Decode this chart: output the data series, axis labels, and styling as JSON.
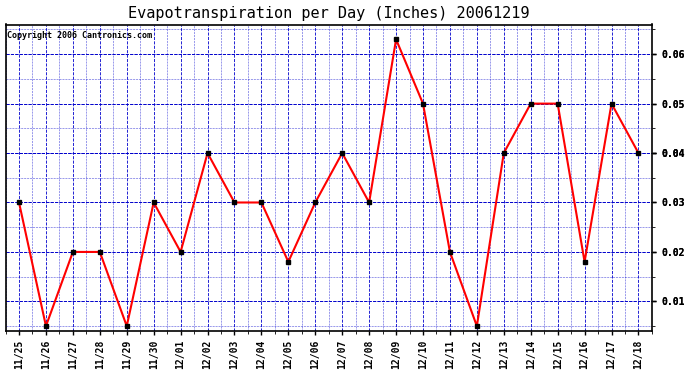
{
  "title": "Evapotranspiration per Day (Inches) 20061219",
  "copyright_text": "Copyright 2006 Cantronics.com",
  "labels": [
    "11/25",
    "11/26",
    "11/27",
    "11/28",
    "11/29",
    "11/30",
    "12/01",
    "12/02",
    "12/03",
    "12/04",
    "12/05",
    "12/06",
    "12/07",
    "12/08",
    "12/09",
    "12/10",
    "12/11",
    "12/12",
    "12/13",
    "12/14",
    "12/15",
    "12/16",
    "12/17",
    "12/18"
  ],
  "values": [
    0.03,
    0.005,
    0.02,
    0.02,
    0.005,
    0.03,
    0.02,
    0.04,
    0.03,
    0.03,
    0.018,
    0.03,
    0.04,
    0.03,
    0.063,
    0.05,
    0.02,
    0.005,
    0.04,
    0.05,
    0.05,
    0.018,
    0.05,
    0.04
  ],
  "line_color": "#ff0000",
  "marker_color": "#000000",
  "bg_color": "#ffffff",
  "plot_bg_color": "#ffffff",
  "grid_color": "#0000cc",
  "title_fontsize": 11,
  "ylim_min": 0.004,
  "ylim_max": 0.066,
  "ytick_positions": [
    0.01,
    0.01,
    0.02,
    0.02,
    0.03,
    0.03,
    0.04,
    0.04,
    0.04,
    0.05,
    0.05,
    0.06,
    0.06
  ],
  "ytick_labels_bottom_to_top": [
    "0.01",
    "0.01",
    "0.02",
    "0.02",
    "0.03",
    "0.03",
    "0.04",
    "0.04",
    "0.04",
    "0.05",
    "0.05",
    "0.06",
    "0.06"
  ]
}
